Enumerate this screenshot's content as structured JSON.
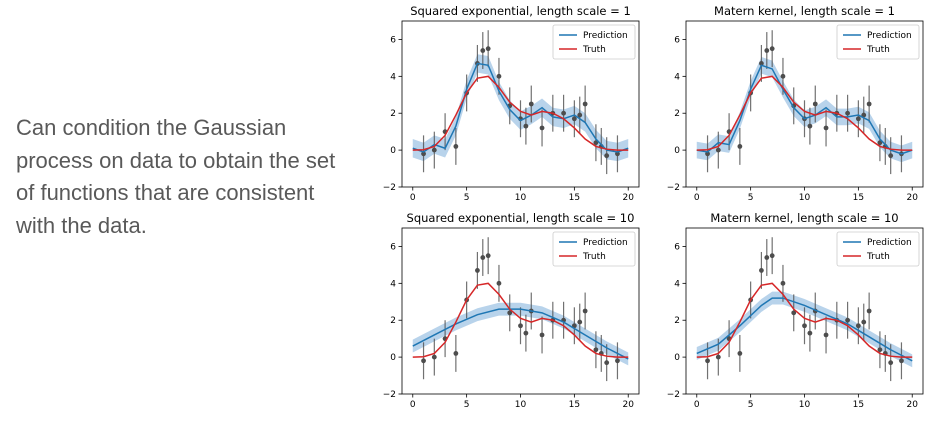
{
  "slide": {
    "text": "Can condition the Gaussian process on data to obtain the set of functions that are consistent with the data."
  },
  "colors": {
    "prediction": "#1f77b4",
    "band": "#a6c8e6",
    "truth": "#d62728",
    "points": "#4d4d4d"
  },
  "chart_data": [
    {
      "type": "line",
      "title": "Squared exponential, length scale = 1",
      "xlim": [
        -1,
        21
      ],
      "ylim": [
        -2,
        7
      ],
      "xticks": [
        0,
        5,
        10,
        15,
        20
      ],
      "yticks": [
        -2,
        0,
        2,
        4,
        6
      ],
      "legend": {
        "position": "top-right",
        "entries": [
          "Prediction",
          "Truth"
        ]
      },
      "observations": {
        "x": [
          1,
          2,
          3,
          4,
          5,
          6,
          6.5,
          7,
          8,
          9,
          10,
          10.5,
          11,
          12,
          13,
          14,
          15,
          15.5,
          16,
          17,
          17.5,
          18,
          19
        ],
        "y": [
          -0.2,
          0,
          1.0,
          0.2,
          3.1,
          4.7,
          5.4,
          5.5,
          4.0,
          2.4,
          1.7,
          1.3,
          2.5,
          1.2,
          2.0,
          2.0,
          1.7,
          1.9,
          2.5,
          0.4,
          0.2,
          -0.3,
          -0.2
        ]
      },
      "series": [
        {
          "name": "Prediction",
          "x": [
            0,
            1,
            2,
            3,
            4,
            5,
            6,
            7,
            8,
            9,
            10,
            11,
            12,
            13,
            14,
            15,
            16,
            17,
            18,
            19,
            20
          ],
          "y": [
            0.1,
            -0.1,
            0.3,
            0.1,
            1.3,
            3.3,
            4.7,
            4.6,
            3.2,
            2.2,
            1.6,
            1.9,
            2.3,
            1.8,
            1.7,
            1.9,
            1.5,
            0.6,
            0.0,
            -0.1,
            0.1
          ],
          "band": 0.5
        },
        {
          "name": "Truth",
          "x": [
            0,
            1,
            2,
            3,
            4,
            5,
            6,
            7,
            8,
            9,
            10,
            11,
            12,
            13,
            14,
            15,
            16,
            17,
            18,
            19,
            20
          ],
          "y": [
            0.0,
            0.02,
            0.2,
            0.8,
            1.9,
            3.1,
            3.9,
            4.0,
            3.4,
            2.6,
            2.1,
            1.9,
            2.1,
            2.0,
            1.7,
            1.2,
            0.6,
            0.2,
            0.05,
            0.0,
            0.0
          ]
        }
      ]
    },
    {
      "type": "line",
      "title": "Matern kernel, length scale = 1",
      "xlim": [
        -1,
        21
      ],
      "ylim": [
        -2,
        7
      ],
      "xticks": [
        0,
        5,
        10,
        15,
        20
      ],
      "yticks": [
        -2,
        0,
        2,
        4,
        6
      ],
      "legend": {
        "position": "top-right",
        "entries": [
          "Prediction",
          "Truth"
        ]
      },
      "observations": {
        "x": [
          1,
          2,
          3,
          4,
          5,
          6,
          6.5,
          7,
          8,
          9,
          10,
          10.5,
          11,
          12,
          13,
          14,
          15,
          15.5,
          16,
          17,
          17.5,
          18,
          19
        ],
        "y": [
          -0.2,
          0,
          1.0,
          0.2,
          3.1,
          4.7,
          5.4,
          5.5,
          4.0,
          2.4,
          1.7,
          1.3,
          2.5,
          1.2,
          2.0,
          2.0,
          1.7,
          1.9,
          2.5,
          0.4,
          0.2,
          -0.3,
          -0.2
        ]
      },
      "series": [
        {
          "name": "Prediction",
          "x": [
            0,
            1,
            2,
            3,
            4,
            5,
            6,
            7,
            8,
            9,
            10,
            11,
            12,
            13,
            14,
            15,
            16,
            17,
            18,
            19,
            20
          ],
          "y": [
            0.0,
            -0.1,
            0.4,
            0.3,
            1.6,
            3.3,
            4.6,
            4.4,
            3.3,
            2.3,
            1.7,
            1.9,
            2.3,
            1.8,
            1.8,
            1.9,
            1.6,
            0.6,
            0.0,
            -0.2,
            0.0
          ],
          "band": 0.45
        },
        {
          "name": "Truth",
          "x": [
            0,
            1,
            2,
            3,
            4,
            5,
            6,
            7,
            8,
            9,
            10,
            11,
            12,
            13,
            14,
            15,
            16,
            17,
            18,
            19,
            20
          ],
          "y": [
            0.0,
            0.02,
            0.2,
            0.8,
            1.9,
            3.1,
            3.9,
            4.0,
            3.4,
            2.6,
            2.1,
            1.9,
            2.1,
            2.0,
            1.7,
            1.2,
            0.6,
            0.2,
            0.05,
            0.0,
            0.0
          ]
        }
      ]
    },
    {
      "type": "line",
      "title": "Squared exponential, length scale = 10",
      "xlim": [
        -1,
        21
      ],
      "ylim": [
        -2,
        7
      ],
      "xticks": [
        0,
        5,
        10,
        15,
        20
      ],
      "yticks": [
        -2,
        0,
        2,
        4,
        6
      ],
      "legend": {
        "position": "top-right",
        "entries": [
          "Prediction",
          "Truth"
        ]
      },
      "observations": {
        "x": [
          1,
          2,
          3,
          4,
          5,
          6,
          6.5,
          7,
          8,
          9,
          10,
          10.5,
          11,
          12,
          13,
          14,
          15,
          15.5,
          16,
          17,
          17.5,
          18,
          19
        ],
        "y": [
          -0.2,
          0,
          1.0,
          0.2,
          3.1,
          4.7,
          5.4,
          5.5,
          4.0,
          2.4,
          1.7,
          1.3,
          2.5,
          1.2,
          2.0,
          2.0,
          1.7,
          1.9,
          2.5,
          0.4,
          0.2,
          -0.3,
          -0.2
        ]
      },
      "series": [
        {
          "name": "Prediction",
          "x": [
            0,
            2,
            4,
            6,
            8,
            10,
            12,
            14,
            16,
            18,
            20
          ],
          "y": [
            0.6,
            1.2,
            1.8,
            2.3,
            2.6,
            2.6,
            2.4,
            1.9,
            1.2,
            0.5,
            -0.1
          ],
          "band": 0.35
        },
        {
          "name": "Truth",
          "x": [
            0,
            1,
            2,
            3,
            4,
            5,
            6,
            7,
            8,
            9,
            10,
            11,
            12,
            13,
            14,
            15,
            16,
            17,
            18,
            19,
            20
          ],
          "y": [
            0.0,
            0.02,
            0.2,
            0.8,
            1.9,
            3.1,
            3.9,
            4.0,
            3.4,
            2.6,
            2.1,
            1.9,
            2.1,
            2.0,
            1.7,
            1.2,
            0.6,
            0.2,
            0.05,
            0.0,
            0.0
          ]
        }
      ]
    },
    {
      "type": "line",
      "title": "Matern kernel, length scale = 10",
      "xlim": [
        -1,
        21
      ],
      "ylim": [
        -2,
        7
      ],
      "xticks": [
        0,
        5,
        10,
        15,
        20
      ],
      "yticks": [
        -2,
        0,
        2,
        4,
        6
      ],
      "legend": {
        "position": "top-right",
        "entries": [
          "Prediction",
          "Truth"
        ]
      },
      "observations": {
        "x": [
          1,
          2,
          3,
          4,
          5,
          6,
          6.5,
          7,
          8,
          9,
          10,
          10.5,
          11,
          12,
          13,
          14,
          15,
          15.5,
          16,
          17,
          17.5,
          18,
          19
        ],
        "y": [
          -0.2,
          0,
          1.0,
          0.2,
          3.1,
          4.7,
          5.4,
          5.5,
          4.0,
          2.4,
          1.7,
          1.3,
          2.5,
          1.2,
          2.0,
          2.0,
          1.7,
          1.9,
          2.5,
          0.4,
          0.2,
          -0.3,
          -0.2
        ]
      },
      "series": [
        {
          "name": "Prediction",
          "x": [
            0,
            2,
            4,
            6,
            7,
            8,
            10,
            12,
            14,
            16,
            18,
            20
          ],
          "y": [
            0.2,
            0.7,
            1.7,
            2.8,
            3.2,
            3.2,
            2.8,
            2.3,
            1.8,
            1.1,
            0.4,
            -0.2
          ],
          "band": 0.35
        },
        {
          "name": "Truth",
          "x": [
            0,
            1,
            2,
            3,
            4,
            5,
            6,
            7,
            8,
            9,
            10,
            11,
            12,
            13,
            14,
            15,
            16,
            17,
            18,
            19,
            20
          ],
          "y": [
            0.0,
            0.02,
            0.2,
            0.8,
            1.9,
            3.1,
            3.9,
            4.0,
            3.4,
            2.6,
            2.1,
            1.9,
            2.1,
            2.0,
            1.7,
            1.2,
            0.6,
            0.2,
            0.05,
            0.0,
            0.0
          ]
        }
      ]
    }
  ]
}
